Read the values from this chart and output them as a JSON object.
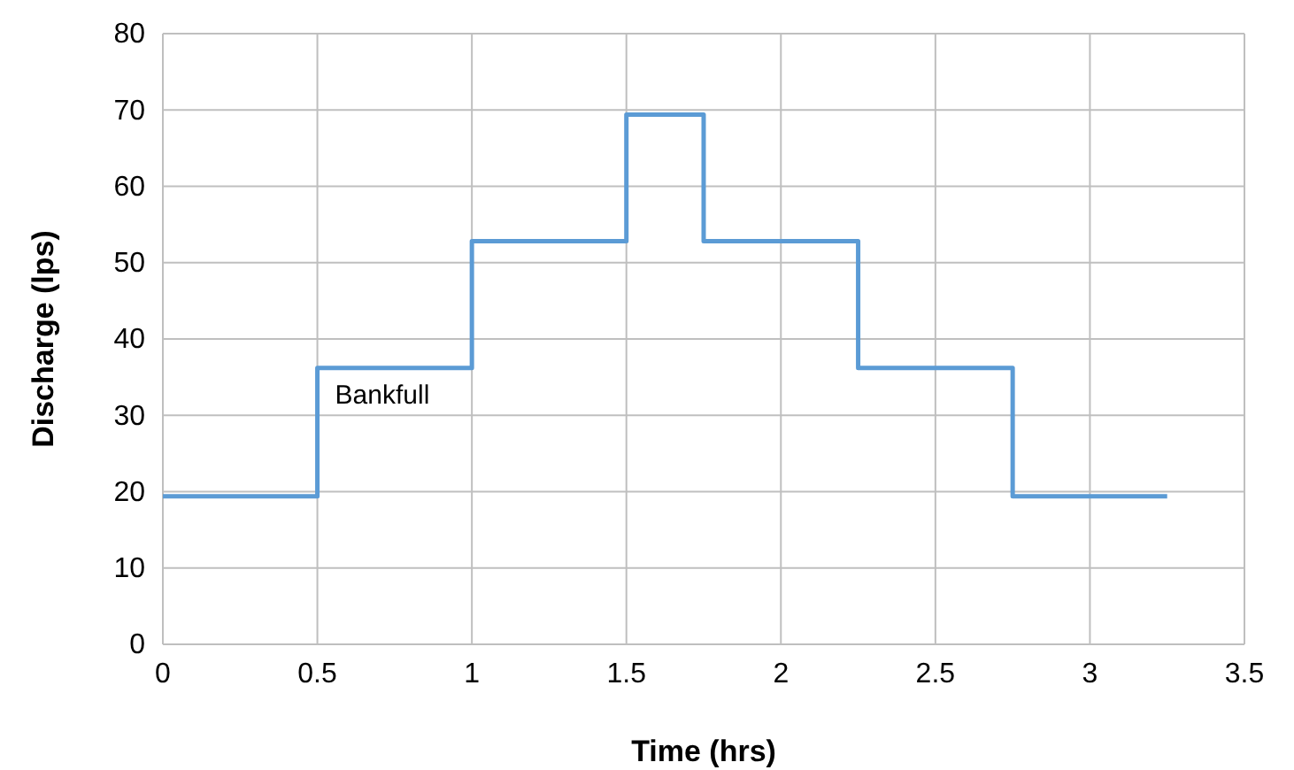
{
  "chart_data": {
    "type": "step",
    "xlabel": "Time (hrs)",
    "ylabel": "Discharge (lps)",
    "x": [
      0,
      0.5,
      1,
      1.5,
      1.75,
      2.25,
      2.75,
      3.25
    ],
    "series": [
      {
        "color": "#5b9bd5",
        "values": [
          19.4,
          36.2,
          52.8,
          69.4,
          52.8,
          36.2,
          19.4,
          19.4
        ]
      }
    ],
    "xlim": [
      0,
      3.5
    ],
    "xticks": [
      0,
      0.5,
      1,
      1.5,
      2,
      2.5,
      3,
      3.5
    ],
    "ylim": [
      0,
      80
    ],
    "yticks": [
      0,
      10,
      20,
      30,
      40,
      50,
      60,
      70,
      80
    ],
    "grid": true,
    "annotations": [
      {
        "text": "Bankfull",
        "x": 0.5,
        "y": 36.2
      }
    ]
  }
}
